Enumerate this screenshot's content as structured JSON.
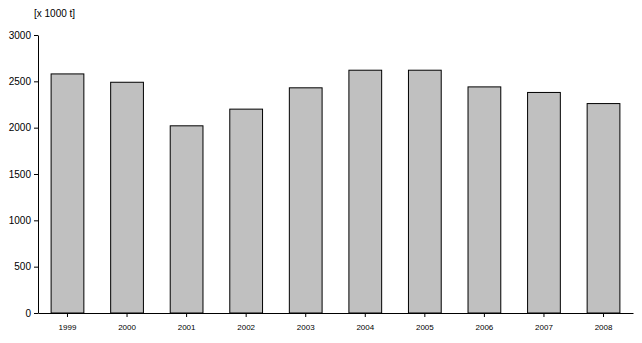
{
  "chart_data": {
    "type": "bar",
    "y_label": "[x 1000 t]",
    "categories": [
      "1999",
      "2000",
      "2001",
      "2002",
      "2003",
      "2004",
      "2005",
      "2006",
      "2007",
      "2008"
    ],
    "values": [
      2580,
      2490,
      2020,
      2200,
      2430,
      2620,
      2620,
      2440,
      2380,
      2260
    ],
    "color": "#c0c0c0",
    "ylim": [
      0,
      3000
    ],
    "yticks": [
      0,
      500,
      1000,
      1500,
      2000,
      2500,
      3000
    ],
    "grid": false
  }
}
